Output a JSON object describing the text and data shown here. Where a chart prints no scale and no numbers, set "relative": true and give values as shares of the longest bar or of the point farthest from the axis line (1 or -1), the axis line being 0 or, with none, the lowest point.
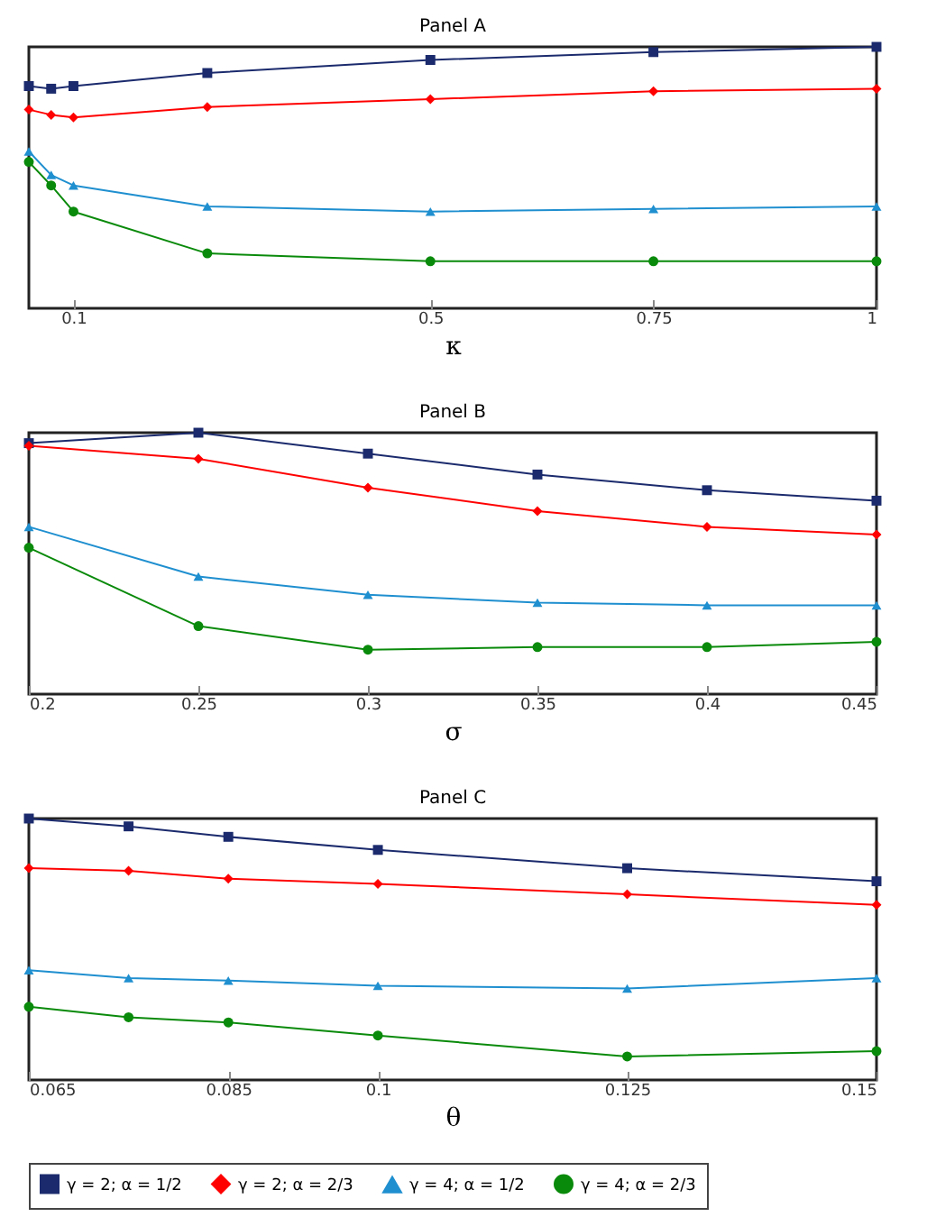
{
  "chart_data": [
    {
      "type": "line",
      "title": "Panel A",
      "xlabel": "κ",
      "relative": true,
      "x": [
        0.05,
        0.075,
        0.1,
        0.25,
        0.5,
        0.75,
        1
      ],
      "xlim": [
        0.05,
        1
      ],
      "xticks": [
        0.1,
        0.5,
        0.75,
        1
      ],
      "series": [
        {
          "color": "#1a2a6c",
          "marker": "square",
          "values": [
            0.85,
            0.84,
            0.85,
            0.9,
            0.95,
            0.98,
            1
          ]
        },
        {
          "color": "#ff0000",
          "marker": "diamond",
          "values": [
            0.76,
            0.74,
            0.73,
            0.77,
            0.8,
            0.83,
            0.84
          ]
        },
        {
          "color": "#1f8fd0",
          "marker": "triangle",
          "values": [
            0.6,
            0.51,
            0.47,
            0.39,
            0.37,
            0.38,
            0.39
          ]
        },
        {
          "color": "#0a8a0a",
          "marker": "circle",
          "values": [
            0.56,
            0.47,
            0.37,
            0.21,
            0.18,
            0.18,
            0.18
          ]
        }
      ]
    },
    {
      "type": "line",
      "title": "Panel B",
      "xlabel": "σ",
      "relative": true,
      "x": [
        0.2,
        0.25,
        0.3,
        0.35,
        0.4,
        0.45
      ],
      "xlim": [
        0.2,
        0.45
      ],
      "xticks": [
        0.2,
        0.25,
        0.3,
        0.35,
        0.4,
        0.45
      ],
      "series": [
        {
          "color": "#1a2a6c",
          "marker": "square",
          "values": [
            0.96,
            1,
            0.92,
            0.84,
            0.78,
            0.74
          ]
        },
        {
          "color": "#ff0000",
          "marker": "diamond",
          "values": [
            0.95,
            0.9,
            0.79,
            0.7,
            0.64,
            0.61
          ]
        },
        {
          "color": "#1f8fd0",
          "marker": "triangle",
          "values": [
            0.64,
            0.45,
            0.38,
            0.35,
            0.34,
            0.34
          ]
        },
        {
          "color": "#0a8a0a",
          "marker": "circle",
          "values": [
            0.56,
            0.26,
            0.17,
            0.18,
            0.18,
            0.2
          ]
        }
      ]
    },
    {
      "type": "line",
      "title": "Panel C",
      "xlabel": "θ",
      "relative": true,
      "x": [
        0.065,
        0.075,
        0.085,
        0.1,
        0.125,
        0.15
      ],
      "xlim": [
        0.065,
        0.15
      ],
      "xticks": [
        0.065,
        0.085,
        0.1,
        0.125,
        0.15
      ],
      "legend": "bottom",
      "series": [
        {
          "name": "γ = 2; α = 1/2",
          "color": "#1a2a6c",
          "marker": "square",
          "values": [
            1,
            0.97,
            0.93,
            0.88,
            0.81,
            0.76
          ]
        },
        {
          "name": "γ = 2; α = 2/3",
          "color": "#ff0000",
          "marker": "diamond",
          "values": [
            0.81,
            0.8,
            0.77,
            0.75,
            0.71,
            0.67
          ]
        },
        {
          "name": "γ = 4; α = 1/2",
          "color": "#1f8fd0",
          "marker": "triangle",
          "values": [
            0.42,
            0.39,
            0.38,
            0.36,
            0.35,
            0.39
          ]
        },
        {
          "name": "γ = 4; α = 2/3",
          "color": "#0a8a0a",
          "marker": "circle",
          "values": [
            0.28,
            0.24,
            0.22,
            0.17,
            0.09,
            0.11
          ]
        }
      ]
    }
  ]
}
